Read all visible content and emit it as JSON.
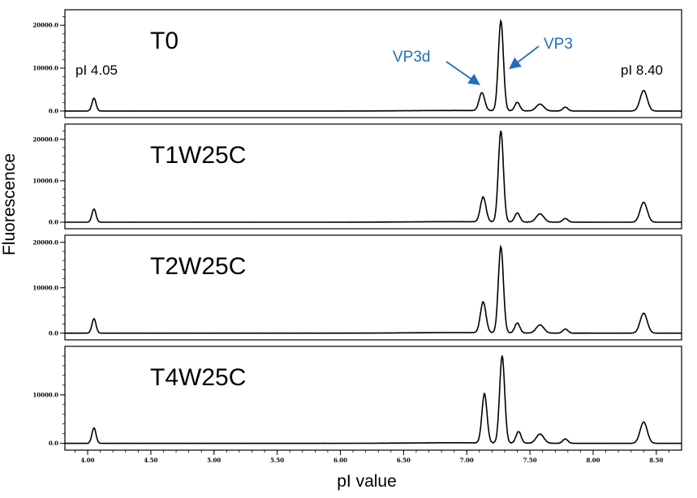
{
  "colors": {
    "trace": "#000000",
    "annotation": "#1f6fbf",
    "frame": "#000000"
  },
  "chart_data": {
    "type": "line",
    "xlabel": "pI value",
    "ylabel": "Fluorescence",
    "xlim": [
      3.82,
      8.7
    ],
    "x_ticks": [
      {
        "v": 4.0,
        "label": "4.00"
      },
      {
        "v": 4.5,
        "label": "4.50"
      },
      {
        "v": 5.0,
        "label": "5.00"
      },
      {
        "v": 5.5,
        "label": "5.50"
      },
      {
        "v": 6.0,
        "label": "6.00"
      },
      {
        "v": 6.5,
        "label": "6.50"
      },
      {
        "v": 7.0,
        "label": "7.00"
      },
      {
        "v": 7.5,
        "label": "7.50"
      },
      {
        "v": 8.0,
        "label": "8.00"
      },
      {
        "v": 8.5,
        "label": "8.50"
      }
    ],
    "panels": [
      {
        "name": "T0",
        "ylim": [
          -400,
          22500
        ],
        "y_ticks": [
          {
            "v": 0,
            "label": "0.0"
          },
          {
            "v": 10000,
            "label": "10000.0"
          },
          {
            "v": 20000,
            "label": "20000.0"
          }
        ],
        "peaks": [
          [
            4.05,
            3000,
            0.016
          ],
          [
            7.12,
            4200,
            0.022
          ],
          [
            7.27,
            21000,
            0.02
          ],
          [
            7.4,
            2000,
            0.02
          ],
          [
            7.58,
            1600,
            0.03
          ],
          [
            7.78,
            900,
            0.02
          ],
          [
            8.4,
            4800,
            0.028
          ]
        ],
        "annotations": {
          "left": "pI 4.05",
          "right": "pI 8.40",
          "vp3d": "VP3d",
          "vp3": "VP3"
        }
      },
      {
        "name": "T1W25C",
        "ylim": [
          -400,
          22500
        ],
        "y_ticks": [
          {
            "v": 0,
            "label": "0.0"
          },
          {
            "v": 10000,
            "label": "10000.0"
          },
          {
            "v": 20000,
            "label": "20000.0"
          }
        ],
        "peaks": [
          [
            4.05,
            3200,
            0.016
          ],
          [
            7.13,
            6000,
            0.022
          ],
          [
            7.27,
            22000,
            0.02
          ],
          [
            7.4,
            2200,
            0.02
          ],
          [
            7.58,
            2000,
            0.03
          ],
          [
            7.78,
            900,
            0.02
          ],
          [
            8.4,
            4800,
            0.028
          ]
        ]
      },
      {
        "name": "T2W25C",
        "ylim": [
          -400,
          20500
        ],
        "y_ticks": [
          {
            "v": 0,
            "label": "0.0"
          },
          {
            "v": 10000,
            "label": "10000.0"
          },
          {
            "v": 20000,
            "label": "20000.0"
          }
        ],
        "peaks": [
          [
            4.05,
            3200,
            0.016
          ],
          [
            7.13,
            6800,
            0.022
          ],
          [
            7.27,
            19000,
            0.02
          ],
          [
            7.4,
            2200,
            0.02
          ],
          [
            7.58,
            1800,
            0.03
          ],
          [
            7.78,
            900,
            0.02
          ],
          [
            8.4,
            4400,
            0.028
          ]
        ]
      },
      {
        "name": "T4W25C",
        "ylim": [
          -400,
          19000
        ],
        "y_ticks": [
          {
            "v": 0,
            "label": "0.0"
          },
          {
            "v": 10000,
            "label": "10000.0"
          }
        ],
        "peaks": [
          [
            4.05,
            3200,
            0.016
          ],
          [
            7.14,
            10200,
            0.02
          ],
          [
            7.28,
            18000,
            0.02
          ],
          [
            7.41,
            2400,
            0.02
          ],
          [
            7.58,
            1900,
            0.03
          ],
          [
            7.78,
            900,
            0.02
          ],
          [
            8.4,
            4400,
            0.028
          ]
        ]
      }
    ]
  }
}
